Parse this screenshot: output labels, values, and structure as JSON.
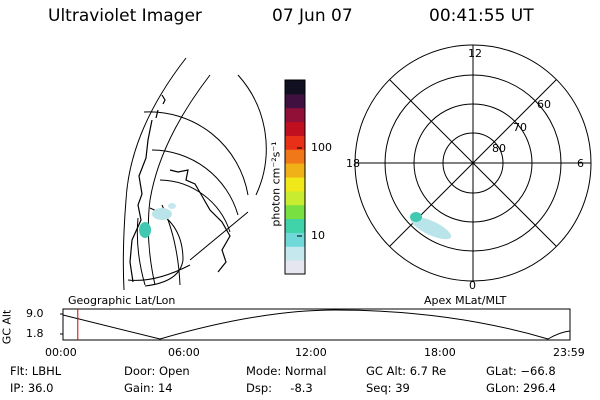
{
  "header": {
    "title": "Ultraviolet Imager",
    "date": "07 Jun 07",
    "time": "00:41:55 UT"
  },
  "colorbar": {
    "unit_label": "photon cm⁻²s⁻¹",
    "ticks": [
      "100",
      "10"
    ],
    "colors": [
      "#e6e6f0",
      "#c4e8ee",
      "#70d8d8",
      "#40d2a8",
      "#78e040",
      "#c8ec30",
      "#f0e818",
      "#f0b018",
      "#f07818",
      "#e83018",
      "#c01020",
      "#901038",
      "#401040",
      "#101020"
    ]
  },
  "left_panel": {
    "label": "Geographic Lat/Lon"
  },
  "polar_plot": {
    "label": "Apex MLat/MLT",
    "mlt_labels": {
      "top": "12",
      "right": "6",
      "bottom": "0",
      "left": "18"
    },
    "lat_labels": [
      "60",
      "70",
      "80"
    ]
  },
  "altitude_plot": {
    "ylabel": "GC Alt",
    "yticks": [
      "9.0",
      "1.8"
    ],
    "xticks": [
      "00:00",
      "06:00",
      "12:00",
      "18:00",
      "23:59"
    ],
    "current_time_marker_hours": 0.7
  },
  "info": {
    "row1": {
      "flt": "Flt: LBHL",
      "door": "Door: Open",
      "mode": "Mode: Normal",
      "gc_alt": "GC Alt: 6.7 Re",
      "glat": "GLat: −66.8"
    },
    "row2": {
      "ip": "IP: 36.0",
      "gain": "Gain: 14",
      "dsp": "Dsp:     -8.3",
      "seq": "Seq: 39",
      "glon": "GLon: 296.4"
    }
  },
  "accent_colors": {
    "marker": "#cc0000",
    "aurora_main": "#40c8b0",
    "aurora_faint": "#b8e4ea"
  }
}
